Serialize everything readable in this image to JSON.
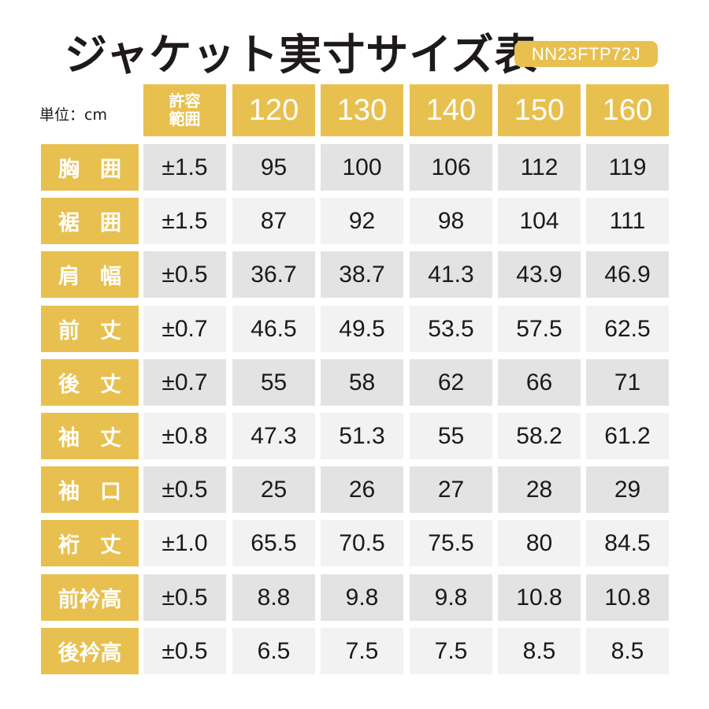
{
  "header": {
    "title": "ジャケット実寸サイズ表",
    "product_code": "NN23FTP72J",
    "unit_label": "単位：cm"
  },
  "colors": {
    "accent": "#e8c04f",
    "row_odd": "#e3e3e3",
    "row_even": "#f2f2f2",
    "text": "#1e1a1a"
  },
  "table": {
    "tolerance_header_line1": "許容",
    "tolerance_header_line2": "範囲",
    "sizes": [
      "120",
      "130",
      "140",
      "150",
      "160"
    ],
    "rows": [
      {
        "label": "胸　囲",
        "tolerance": "±1.5",
        "values": [
          "95",
          "100",
          "106",
          "112",
          "119"
        ]
      },
      {
        "label": "裾　囲",
        "tolerance": "±1.5",
        "values": [
          "87",
          "92",
          "98",
          "104",
          "111"
        ]
      },
      {
        "label": "肩　幅",
        "tolerance": "±0.5",
        "values": [
          "36.7",
          "38.7",
          "41.3",
          "43.9",
          "46.9"
        ]
      },
      {
        "label": "前　丈",
        "tolerance": "±0.7",
        "values": [
          "46.5",
          "49.5",
          "53.5",
          "57.5",
          "62.5"
        ]
      },
      {
        "label": "後　丈",
        "tolerance": "±0.7",
        "values": [
          "55",
          "58",
          "62",
          "66",
          "71"
        ]
      },
      {
        "label": "袖　丈",
        "tolerance": "±0.8",
        "values": [
          "47.3",
          "51.3",
          "55",
          "58.2",
          "61.2"
        ]
      },
      {
        "label": "袖　口",
        "tolerance": "±0.5",
        "values": [
          "25",
          "26",
          "27",
          "28",
          "29"
        ]
      },
      {
        "label": "裄　丈",
        "tolerance": "±1.0",
        "values": [
          "65.5",
          "70.5",
          "75.5",
          "80",
          "84.5"
        ]
      },
      {
        "label": "前衿高",
        "tolerance": "±0.5",
        "values": [
          "8.8",
          "9.8",
          "9.8",
          "10.8",
          "10.8"
        ]
      },
      {
        "label": "後衿高",
        "tolerance": "±0.5",
        "values": [
          "6.5",
          "7.5",
          "7.5",
          "8.5",
          "8.5"
        ]
      }
    ]
  },
  "chart_data": {
    "type": "table",
    "title": "ジャケット実寸サイズ表",
    "unit": "cm",
    "columns": [
      "許容範囲",
      "120",
      "130",
      "140",
      "150",
      "160"
    ],
    "rows": [
      [
        "胸囲",
        "±1.5",
        95,
        100,
        106,
        112,
        119
      ],
      [
        "裾囲",
        "±1.5",
        87,
        92,
        98,
        104,
        111
      ],
      [
        "肩幅",
        "±0.5",
        36.7,
        38.7,
        41.3,
        43.9,
        46.9
      ],
      [
        "前丈",
        "±0.7",
        46.5,
        49.5,
        53.5,
        57.5,
        62.5
      ],
      [
        "後丈",
        "±0.7",
        55,
        58,
        62,
        66,
        71
      ],
      [
        "袖丈",
        "±0.8",
        47.3,
        51.3,
        55,
        58.2,
        61.2
      ],
      [
        "袖口",
        "±0.5",
        25,
        26,
        27,
        28,
        29
      ],
      [
        "裄丈",
        "±1.0",
        65.5,
        70.5,
        75.5,
        80,
        84.5
      ],
      [
        "前衿高",
        "±0.5",
        8.8,
        9.8,
        9.8,
        10.8,
        10.8
      ],
      [
        "後衿高",
        "±0.5",
        6.5,
        7.5,
        7.5,
        8.5,
        8.5
      ]
    ]
  }
}
